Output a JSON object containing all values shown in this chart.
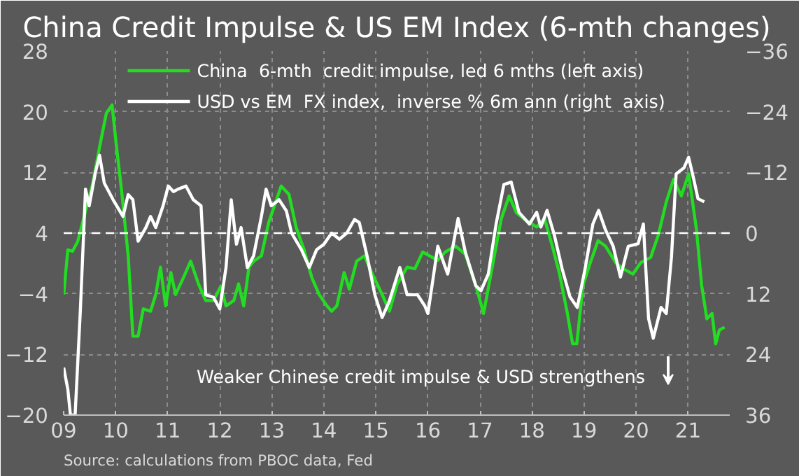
{
  "chart_data": {
    "type": "line",
    "title": "China Credit Impulse & US EM Index (6-mth changes)",
    "xlim": [
      2009,
      2021.8
    ],
    "xticks": [
      {
        "value": 2009,
        "label": "09"
      },
      {
        "value": 2010,
        "label": "10"
      },
      {
        "value": 2011,
        "label": "11"
      },
      {
        "value": 2012,
        "label": "12"
      },
      {
        "value": 2013,
        "label": "13"
      },
      {
        "value": 2014,
        "label": "14"
      },
      {
        "value": 2015,
        "label": "15"
      },
      {
        "value": 2016,
        "label": "16"
      },
      {
        "value": 2017,
        "label": "17"
      },
      {
        "value": 2018,
        "label": "18"
      },
      {
        "value": 2019,
        "label": "19"
      },
      {
        "value": 2020,
        "label": "20"
      },
      {
        "value": 2021,
        "label": "21"
      }
    ],
    "ylim": [
      -20,
      28
    ],
    "yticks": [
      -20,
      -12,
      -4,
      4,
      12,
      20,
      28
    ],
    "y2lim": [
      36,
      -36
    ],
    "y2ticks": [
      -36,
      -24,
      -12,
      0,
      12,
      24,
      36
    ],
    "grid": true,
    "legend": "top",
    "marker": "none",
    "line_style": "solid",
    "ref_lines": [
      {
        "axis": "y",
        "value": 4,
        "label": null,
        "color": "#ffffff",
        "line_style": "dashed"
      }
    ],
    "annotations": [
      "Weaker Chinese credit impulse & USD strengthens",
      "Source:  calculations  from PBOC data,  Fed"
    ],
    "series": [
      {
        "name": "China  6-mth  credit impulse, led 6 mths (left axis)",
        "color": "#22dd22",
        "x": [
          2009.0,
          2009.08,
          2009.17,
          2009.27,
          2009.42,
          2009.56,
          2009.7,
          2009.82,
          2009.93,
          2010.01,
          2010.11,
          2010.24,
          2010.33,
          2010.43,
          2010.53,
          2010.67,
          2010.77,
          2010.86,
          2010.96,
          2011.06,
          2011.15,
          2011.3,
          2011.44,
          2011.59,
          2011.73,
          2011.88,
          2012.02,
          2012.12,
          2012.27,
          2012.36,
          2012.46,
          2012.56,
          2012.65,
          2012.8,
          2012.94,
          2013.09,
          2013.18,
          2013.33,
          2013.47,
          2013.62,
          2013.77,
          2013.91,
          2014.06,
          2014.15,
          2014.25,
          2014.39,
          2014.49,
          2014.63,
          2014.78,
          2014.92,
          2015.12,
          2015.26,
          2015.41,
          2015.6,
          2015.75,
          2015.9,
          2016.19,
          2016.33,
          2016.53,
          2016.72,
          2016.92,
          2017.07,
          2017.21,
          2017.41,
          2017.56,
          2017.7,
          2017.9,
          2018.09,
          2018.24,
          2018.39,
          2018.53,
          2018.68,
          2018.78,
          2018.86,
          2018.98,
          2019.12,
          2019.27,
          2019.41,
          2019.61,
          2019.75,
          2019.94,
          2020.09,
          2020.28,
          2020.43,
          2020.58,
          2020.72,
          2020.87,
          2021.01,
          2021.16,
          2021.26,
          2021.36,
          2021.46,
          2021.53,
          2021.6,
          2021.7
        ],
        "values": [
          -4.1,
          1.8,
          1.6,
          2.9,
          6.9,
          10.6,
          15.7,
          19.8,
          20.9,
          15.7,
          9.8,
          1.0,
          -9.6,
          -9.6,
          -6.0,
          -6.3,
          -4.1,
          -0.5,
          -5.6,
          -1.2,
          -4.1,
          -1.9,
          0.3,
          -2.7,
          -4.9,
          -4.9,
          -3.0,
          -5.6,
          -4.9,
          -2.7,
          -5.6,
          -0.5,
          0.3,
          1.0,
          5.4,
          8.4,
          10.2,
          9.1,
          4.7,
          1.8,
          -1.9,
          -4.1,
          -5.6,
          -6.3,
          -5.6,
          -1.2,
          -3.4,
          0.3,
          1.0,
          -1.2,
          -4.1,
          -6.3,
          -2.7,
          -0.5,
          -0.7,
          1.5,
          0.4,
          1.5,
          2.3,
          1.2,
          -2.9,
          -6.6,
          -1.4,
          5.9,
          8.9,
          6.7,
          5.6,
          4.8,
          5.9,
          2.3,
          -1.4,
          -6.6,
          -10.6,
          -10.6,
          -2.9,
          0.1,
          3.0,
          2.3,
          0.1,
          -0.7,
          -1.4,
          0.1,
          0.8,
          3.8,
          8.1,
          11.1,
          8.9,
          11.8,
          4.5,
          -2.9,
          -7.3,
          -6.6,
          -10.6,
          -8.8,
          -8.4
        ]
      },
      {
        "name": "USD vs EM  FX index,  inverse % 6m ann (right  axis)",
        "color": "#ffffff",
        "axis": "y2",
        "x": [
          2009.0,
          2009.08,
          2009.13,
          2009.22,
          2009.32,
          2009.42,
          2009.49,
          2009.61,
          2009.69,
          2009.78,
          2009.95,
          2010.14,
          2010.24,
          2010.33,
          2010.43,
          2010.58,
          2010.67,
          2010.77,
          2010.91,
          2011.01,
          2011.11,
          2011.2,
          2011.35,
          2011.49,
          2011.64,
          2011.73,
          2011.88,
          2012.0,
          2012.12,
          2012.22,
          2012.32,
          2012.41,
          2012.53,
          2012.65,
          2012.8,
          2012.89,
          2012.99,
          2013.14,
          2013.28,
          2013.38,
          2013.57,
          2013.72,
          2013.86,
          2014.0,
          2014.15,
          2014.3,
          2014.44,
          2014.59,
          2014.68,
          2014.83,
          2014.98,
          2015.12,
          2015.26,
          2015.46,
          2015.6,
          2015.8,
          2015.94,
          2016.0,
          2016.19,
          2016.38,
          2016.58,
          2016.72,
          2016.92,
          2017.02,
          2017.16,
          2017.31,
          2017.46,
          2017.6,
          2017.75,
          2017.95,
          2018.09,
          2018.17,
          2018.29,
          2018.43,
          2018.58,
          2018.73,
          2018.87,
          2019.02,
          2019.17,
          2019.28,
          2019.41,
          2019.56,
          2019.7,
          2019.85,
          2020.04,
          2020.14,
          2020.24,
          2020.33,
          2020.48,
          2020.58,
          2020.68,
          2020.77,
          2020.92,
          2021.01,
          2021.11,
          2021.19,
          2021.31
        ],
        "values": [
          26.6,
          30.9,
          36,
          36,
          15.4,
          -8.7,
          -5.4,
          -12,
          -15.4,
          -9.9,
          -6.6,
          -3.3,
          -7.6,
          -6.6,
          1.6,
          -1.1,
          -3.3,
          -1.1,
          -5.4,
          -9.3,
          -8.2,
          -8.7,
          -9.3,
          -6.6,
          -5.4,
          12.2,
          12.7,
          15,
          6.8,
          -6.6,
          2.2,
          -1.1,
          6.8,
          4.5,
          -3.3,
          -8.7,
          -5.4,
          -6.6,
          -4.4,
          0,
          3.3,
          6.8,
          3.3,
          2.2,
          0,
          1.2,
          0,
          -2.7,
          -2.1,
          4.5,
          12.2,
          16.7,
          13.4,
          6.8,
          12.2,
          12.2,
          14.4,
          15.9,
          2.6,
          8.1,
          -2.9,
          3.8,
          10.4,
          11.4,
          8.1,
          -1.8,
          -9.6,
          -10.1,
          -4.1,
          -1.8,
          -4.1,
          -1.2,
          -4.5,
          0.4,
          7.1,
          12.6,
          14.7,
          7.1,
          -1.8,
          -4.5,
          -0.7,
          2.6,
          8.7,
          2.6,
          2.1,
          -1.8,
          16.9,
          20.8,
          14.7,
          15.9,
          4.8,
          -11.7,
          -12.9,
          -15,
          -10.6,
          -6.8,
          -6.2
        ]
      }
    ]
  }
}
